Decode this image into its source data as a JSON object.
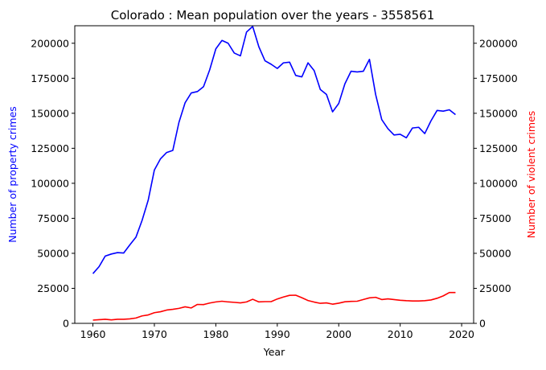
{
  "chart_data": {
    "type": "line",
    "title": "Colorado : Mean population over the years - 3558561",
    "xlabel": "Year",
    "ylabel": "Number of property crimes",
    "y2label": "Number of violent crimes",
    "xlim": [
      1957.05,
      2021.95
    ],
    "ylim": [
      0,
      212500
    ],
    "y2lim": [
      0,
      212500
    ],
    "xticks": [
      1960,
      1970,
      1980,
      1990,
      2000,
      2010,
      2020
    ],
    "yticks": [
      0,
      25000,
      50000,
      75000,
      100000,
      125000,
      150000,
      175000,
      200000
    ],
    "grid": false,
    "colors": {
      "property": "#0000ff",
      "violent": "#ff0000",
      "axis": "#000000"
    },
    "x": [
      1960,
      1961,
      1962,
      1963,
      1964,
      1965,
      1966,
      1967,
      1968,
      1969,
      1970,
      1971,
      1972,
      1973,
      1974,
      1975,
      1976,
      1977,
      1978,
      1979,
      1980,
      1981,
      1982,
      1983,
      1984,
      1985,
      1986,
      1987,
      1988,
      1989,
      1990,
      1991,
      1992,
      1993,
      1994,
      1995,
      1996,
      1997,
      1998,
      1999,
      2000,
      2001,
      2002,
      2003,
      2004,
      2005,
      2006,
      2007,
      2008,
      2009,
      2010,
      2011,
      2012,
      2013,
      2014,
      2015,
      2016,
      2017,
      2018,
      2019
    ],
    "series": [
      {
        "key": "property",
        "axis": "left",
        "values": [
          35500,
          40500,
          48000,
          49500,
          50500,
          50200,
          56000,
          61500,
          73500,
          88000,
          109500,
          117500,
          122000,
          123500,
          143500,
          157500,
          164500,
          165500,
          169000,
          181000,
          196000,
          202000,
          200000,
          193000,
          191000,
          208000,
          212000,
          197500,
          187500,
          185000,
          182000,
          186000,
          186500,
          177000,
          176000,
          186000,
          180500,
          167000,
          163500,
          151000,
          157000,
          171000,
          180000,
          179500,
          180000,
          188500,
          163500,
          145500,
          139000,
          134500,
          135000,
          132500,
          139500,
          140000,
          135500,
          144500,
          152000,
          151500,
          152500,
          149000
        ]
      },
      {
        "key": "violent",
        "axis": "right",
        "values": [
          2300,
          2600,
          2900,
          2500,
          2900,
          2900,
          3200,
          3800,
          5300,
          6000,
          7600,
          8300,
          9500,
          10000,
          10700,
          11800,
          11000,
          13500,
          13400,
          14500,
          15300,
          15800,
          15300,
          15000,
          14600,
          15300,
          17200,
          15300,
          15500,
          15500,
          17400,
          18800,
          20000,
          20100,
          18300,
          16300,
          15200,
          14300,
          14600,
          13700,
          14400,
          15400,
          15700,
          15800,
          17000,
          18200,
          18600,
          17000,
          17500,
          17000,
          16500,
          16200,
          16000,
          16000,
          16200,
          16700,
          17900,
          19600,
          22000,
          22000
        ]
      }
    ]
  }
}
